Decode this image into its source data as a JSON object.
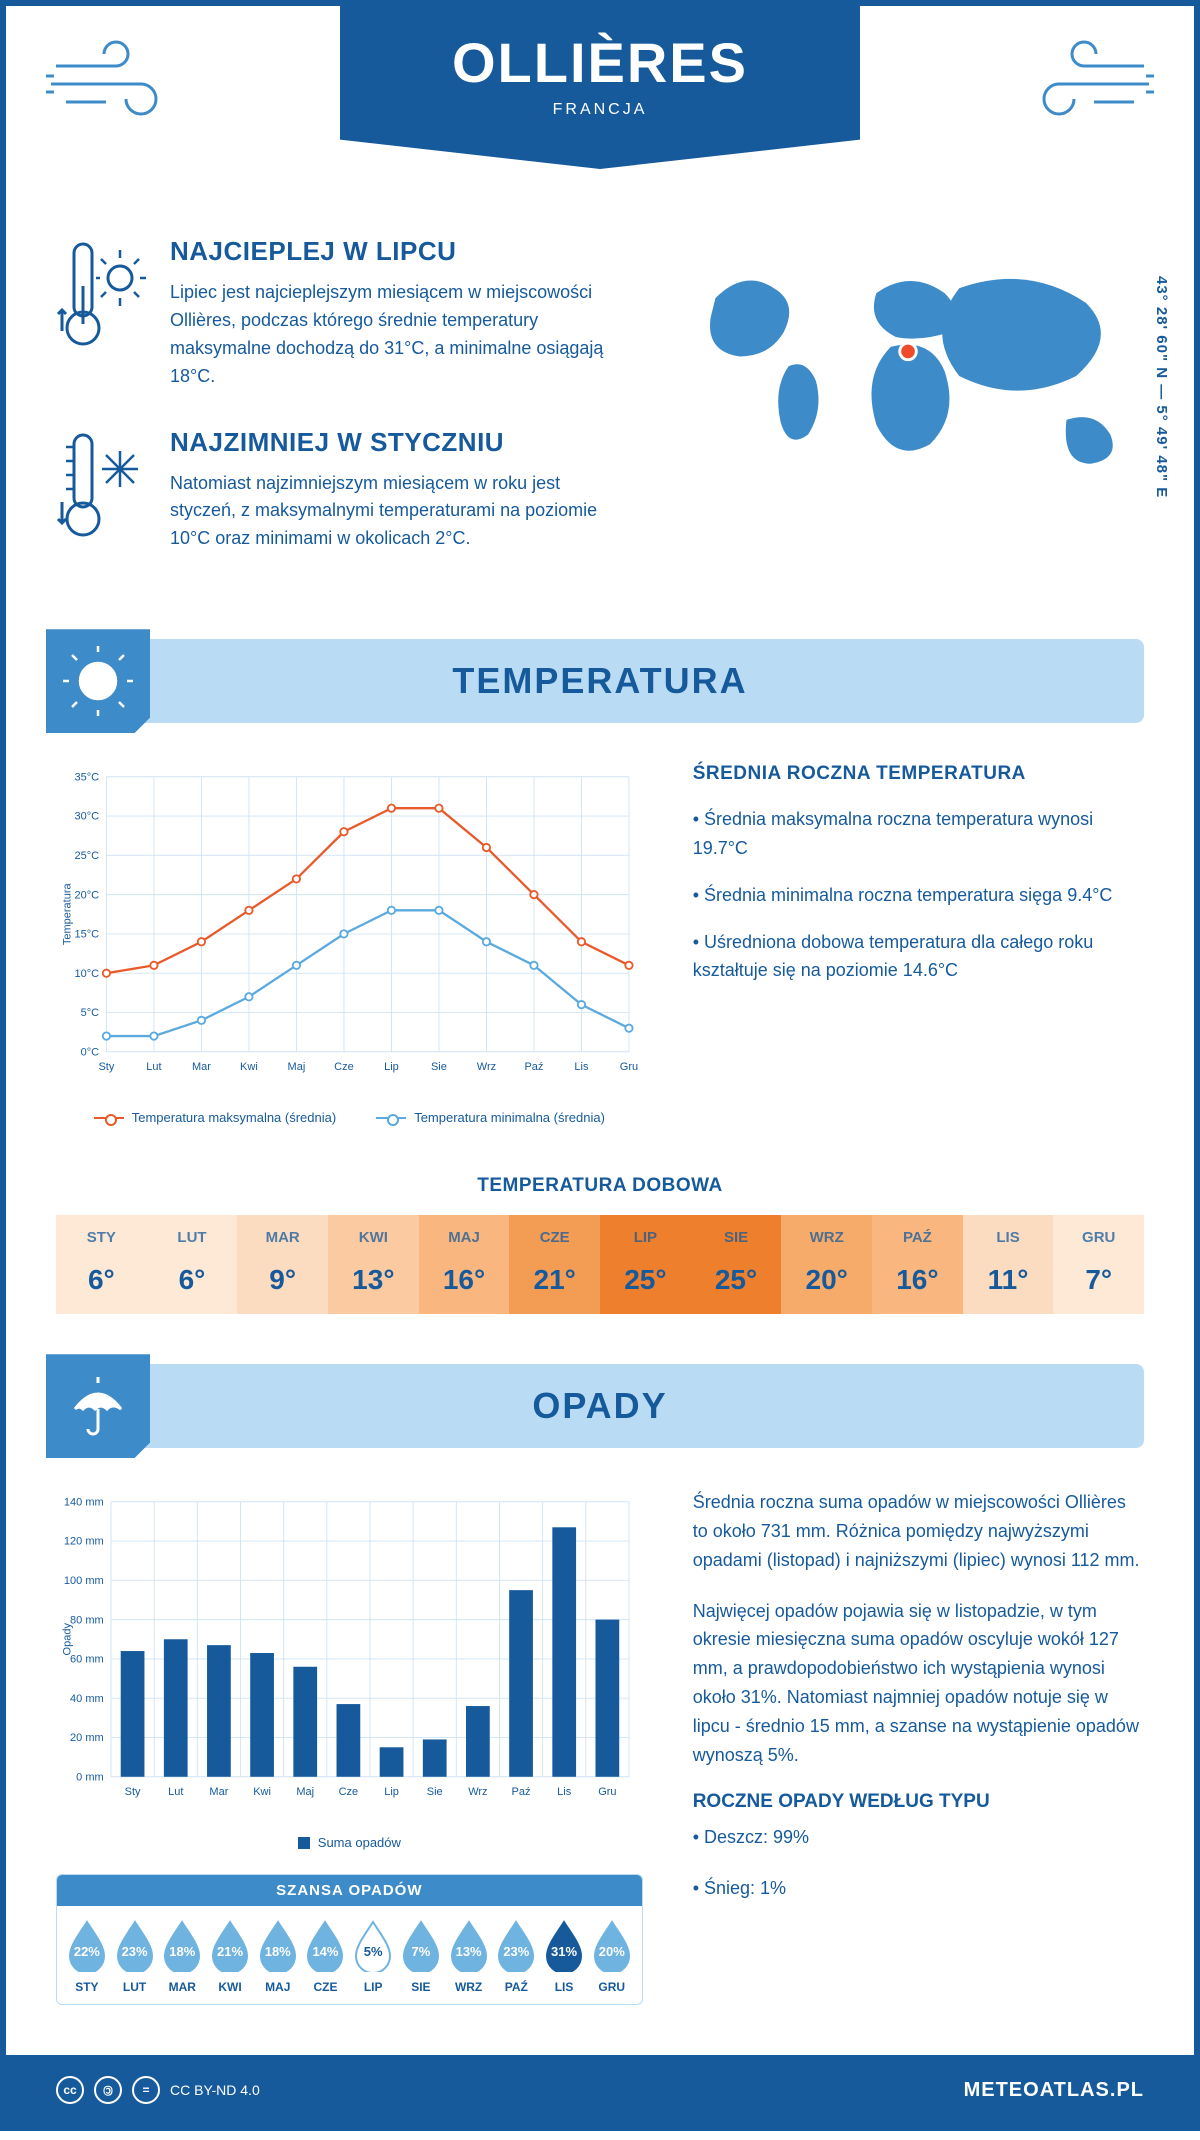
{
  "header": {
    "city": "OLLIÈRES",
    "country": "FRANCJA",
    "coords": "43° 28' 60\" N — 5° 49' 48\" E"
  },
  "facts": {
    "hot": {
      "title": "NAJCIEPLEJ W LIPCU",
      "text": "Lipiec jest najcieplejszym miesiącem w miejscowości Ollières, podczas którego średnie temperatury maksymalne dochodzą do 31°C, a minimalne osiągają 18°C."
    },
    "cold": {
      "title": "NAJZIMNIEJ W STYCZNIU",
      "text": "Natomiast najzimniejszym miesiącem w roku jest styczeń, z maksymalnymi temperaturami na poziomie 10°C oraz minimami w okolicach 2°C."
    }
  },
  "months_short": [
    "Sty",
    "Lut",
    "Mar",
    "Kwi",
    "Maj",
    "Cze",
    "Lip",
    "Sie",
    "Wrz",
    "Paź",
    "Lis",
    "Gru"
  ],
  "months_upper": [
    "STY",
    "LUT",
    "MAR",
    "KWI",
    "MAJ",
    "CZE",
    "LIP",
    "SIE",
    "WRZ",
    "PAŹ",
    "LIS",
    "GRU"
  ],
  "temperature": {
    "section_title": "TEMPERATURA",
    "yaxis_label": "Temperatura",
    "ylim": [
      0,
      35
    ],
    "ytick_step": 5,
    "ytick_suffix": "°C",
    "grid_color": "#cfe4f4",
    "line_max": {
      "color": "#e85a2a",
      "values": [
        10,
        11,
        14,
        18,
        22,
        28,
        31,
        31,
        26,
        20,
        14,
        11
      ]
    },
    "line_min": {
      "color": "#5aa9df",
      "values": [
        2,
        2,
        4,
        7,
        11,
        15,
        18,
        18,
        14,
        11,
        6,
        3
      ]
    },
    "legend_max": "Temperatura maksymalna (średnia)",
    "legend_min": "Temperatura minimalna (średnia)",
    "stats_title": "ŚREDNIA ROCZNA TEMPERATURA",
    "stat1": "• Średnia maksymalna roczna temperatura wynosi 19.7°C",
    "stat2": "• Średnia minimalna roczna temperatura sięga 9.4°C",
    "stat3": "• Uśredniona dobowa temperatura dla całego roku kształtuje się na poziomie 14.6°C",
    "daily_title": "TEMPERATURA DOBOWA",
    "daily_values": [
      6,
      6,
      9,
      13,
      16,
      21,
      25,
      25,
      20,
      16,
      11,
      7
    ],
    "daily_colors": [
      "#fde9d6",
      "#fde9d6",
      "#fcdcc0",
      "#fbcaa0",
      "#f9b77f",
      "#f39c54",
      "#ee7f2c",
      "#ee7f2c",
      "#f6ab6a",
      "#f9b77f",
      "#fcdcc0",
      "#fde9d6"
    ]
  },
  "precip": {
    "section_title": "OPADY",
    "yaxis_label": "Opady",
    "ylim": [
      0,
      140
    ],
    "ytick_step": 20,
    "ytick_suffix": " mm",
    "bar_color": "#165a9c",
    "grid_color": "#cfe4f4",
    "values": [
      64,
      70,
      67,
      63,
      56,
      37,
      15,
      19,
      36,
      95,
      127,
      80
    ],
    "legend": "Suma opadów",
    "para1": "Średnia roczna suma opadów w miejscowości Ollières to około 731 mm. Różnica pomiędzy najwyższymi opadami (listopad) i najniższymi (lipiec) wynosi 112 mm.",
    "para2": "Najwięcej opadów pojawia się w listopadzie, w tym okresie miesięczna suma opadów oscyluje wokół 127 mm, a prawdopodobieństwo ich wystąpienia wynosi około 31%. Natomiast najmniej opadów notuje się w lipcu - średnio 15 mm, a szanse na wystąpienie opadów wynoszą 5%.",
    "chance_title": "SZANSA OPADÓW",
    "chance_values": [
      22,
      23,
      18,
      21,
      18,
      14,
      5,
      7,
      13,
      23,
      31,
      20
    ],
    "drop_light": "#6fb3e0",
    "drop_dark": "#165a9c",
    "drop_white_threshold": 6,
    "drop_dark_threshold": 30,
    "type_title": "ROCZNE OPADY WEDŁUG TYPU",
    "type1": "• Deszcz: 99%",
    "type2": "• Śnieg: 1%"
  },
  "footer": {
    "license": "CC BY-ND 4.0",
    "site": "METEOATLAS.PL"
  },
  "map": {
    "land_color": "#3d8bc9",
    "marker_color": "#ef4a2a",
    "marker_x": 0.515,
    "marker_y": 0.41
  }
}
